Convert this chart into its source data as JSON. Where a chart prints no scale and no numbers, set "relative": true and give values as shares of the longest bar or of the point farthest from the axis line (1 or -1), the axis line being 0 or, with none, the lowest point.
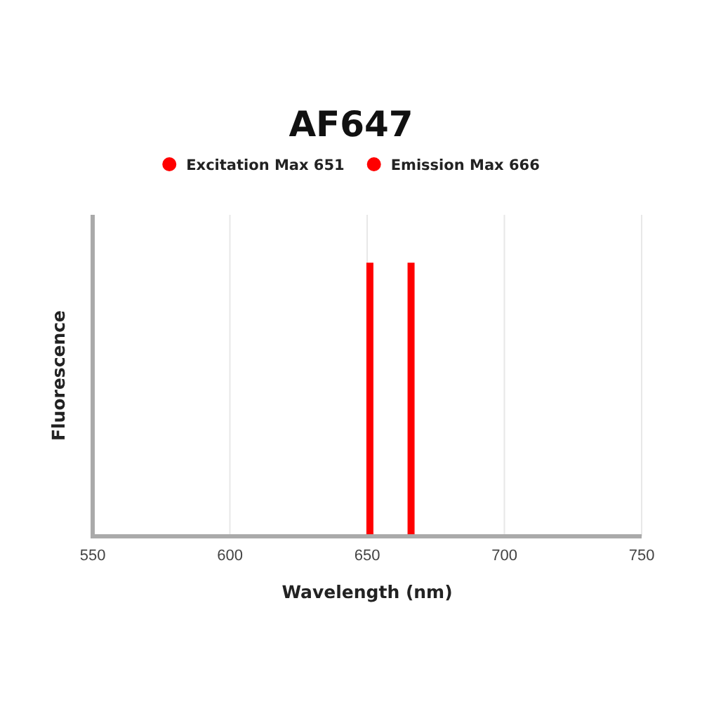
{
  "chart_data": {
    "type": "bar",
    "title": "AF647",
    "xlabel": "Wavelength (nm)",
    "ylabel": "Fluorescence",
    "relative": true,
    "series": [
      {
        "name": "Excitation Max 651",
        "color": "#ff0000",
        "x": [
          651
        ],
        "values": [
          1
        ]
      },
      {
        "name": "Emission Max 666",
        "color": "#ff0000",
        "x": [
          666
        ],
        "values": [
          1
        ]
      }
    ],
    "xlim": [
      550,
      750
    ],
    "xticks": [
      550,
      600,
      650,
      700,
      750
    ],
    "grid": "x",
    "legend": "top"
  }
}
